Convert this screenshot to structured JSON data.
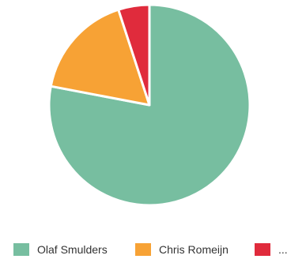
{
  "chart_data": {
    "type": "pie",
    "categories": [
      "Olaf Smulders",
      "Chris Romeijn",
      "..."
    ],
    "values": [
      78,
      17,
      5
    ],
    "colors": [
      "#77bea0",
      "#f7a235",
      "#e02b3c"
    ],
    "start_angle_deg": 0,
    "direction": "clockwise",
    "slice_border": "#ffffff",
    "legend_position": "bottom"
  },
  "legend": {
    "items": [
      {
        "label": "Olaf Smulders",
        "color": "#77bea0"
      },
      {
        "label": "Chris Romeijn",
        "color": "#f7a235"
      },
      {
        "label": "...",
        "color": "#e02b3c"
      }
    ]
  }
}
